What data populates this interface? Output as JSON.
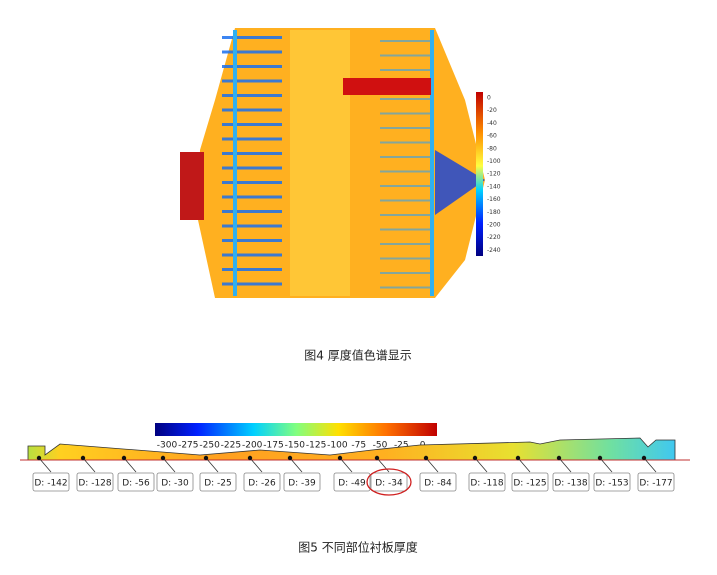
{
  "figure4": {
    "colorbar_ticks": [
      0,
      -20,
      -40,
      -60,
      -80,
      -100,
      -120,
      -140,
      -160,
      -180,
      -200,
      -220,
      -240
    ],
    "caption": "图4 厚度值色谱显示"
  },
  "figure5": {
    "colorbar_ticks": [
      -300,
      -275,
      -250,
      -225,
      -200,
      -175,
      -150,
      -125,
      -100,
      -75,
      -50,
      -25,
      0
    ],
    "labels": [
      "D: -142",
      "D: -128",
      "D: -56",
      "D: -30",
      "D: -25",
      "D: -26",
      "D: -39",
      "D: -49",
      "D: -34",
      "D: -84",
      "D: -118",
      "D: -125",
      "D: -138",
      "D: -153",
      "D: -177"
    ],
    "caption": "图5 不同部位衬板厚度"
  }
}
